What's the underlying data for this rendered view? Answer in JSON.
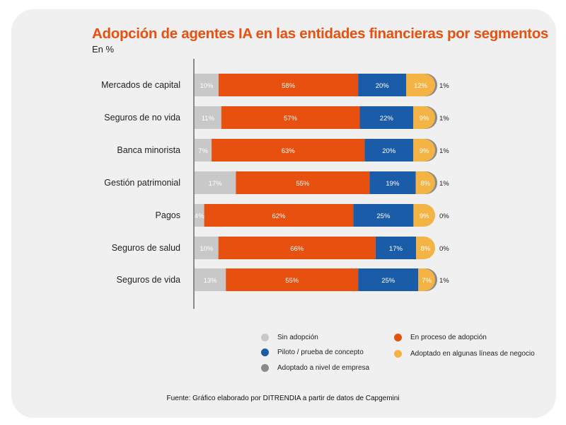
{
  "chart_data": {
    "type": "bar",
    "orientation": "horizontal",
    "stacked": true,
    "title": "Adopción de agentes IA en las entidades financieras por segmentos",
    "subtitle": "En %",
    "categories": [
      "Mercados de capital",
      "Seguros de no vida",
      "Banca minorista",
      "Gestión patrimonial",
      "Pagos",
      "Seguros de salud",
      "Seguros de vida"
    ],
    "series": [
      {
        "name": "Sin adopción",
        "color": "#c8c8c8",
        "values": [
          10,
          11,
          7,
          17,
          4,
          10,
          13
        ]
      },
      {
        "name": "En proceso de adopción",
        "color": "#e8500f",
        "values": [
          58,
          57,
          63,
          55,
          62,
          66,
          55
        ]
      },
      {
        "name": "Piloto / prueba de concepto",
        "color": "#1a5ca8",
        "values": [
          20,
          22,
          20,
          19,
          25,
          17,
          25
        ]
      },
      {
        "name": "Adoptado en algunas líneas de negocio",
        "color": "#f3b445",
        "values": [
          12,
          9,
          9,
          8,
          9,
          8,
          7
        ]
      },
      {
        "name": "Adoptado a nivel de empresa",
        "color": "#8a8a8a",
        "values": [
          1,
          1,
          1,
          1,
          0,
          0,
          1
        ]
      }
    ],
    "xlim": [
      0,
      100
    ],
    "grid": false,
    "legend_placement": "bottom",
    "source": "Fuente: Gráfico elaborado por DITRENDIA a partir de datos de Capgemini"
  }
}
